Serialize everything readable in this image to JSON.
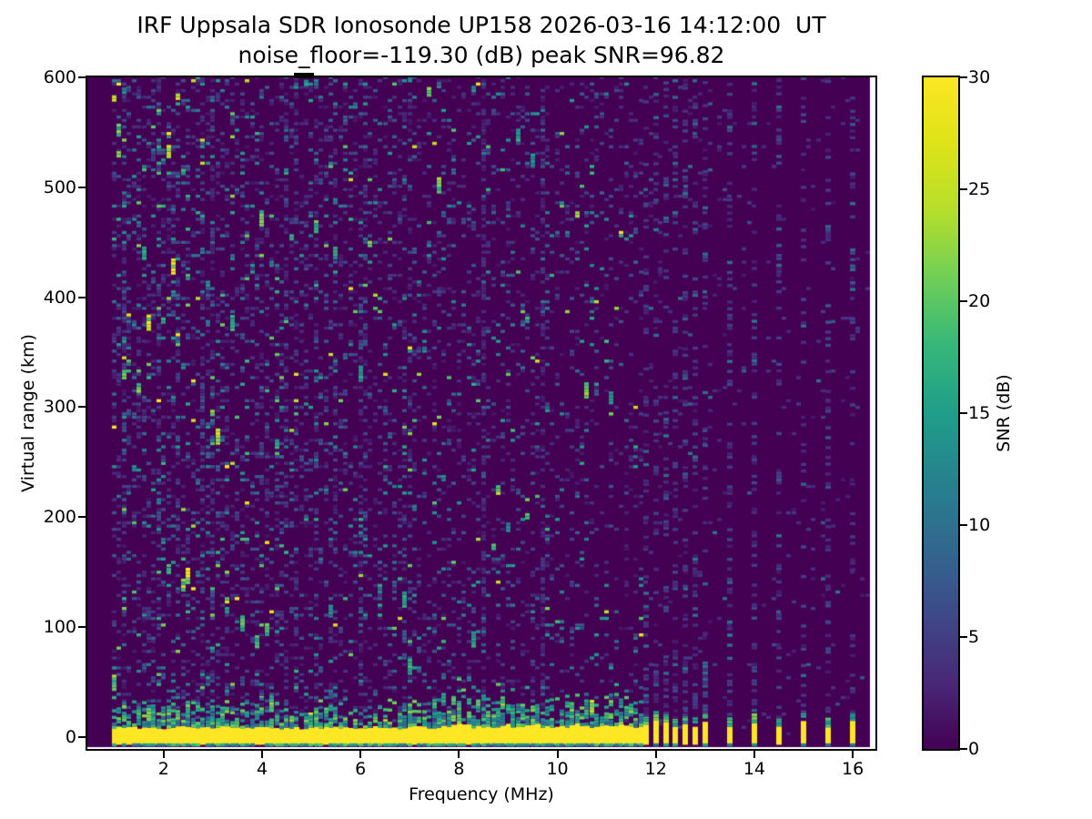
{
  "chart_data": {
    "type": "heatmap",
    "title": "IRF Uppsala SDR Ionosonde UP158 2026-03-16 14:12:00  UT",
    "subtitle": "noise_floor=-119.30 (dB) peak SNR=96.82",
    "xlabel": "Frequency (MHz)",
    "ylabel": "Virtual range (km)",
    "colorbar_label": "SNR (dB)",
    "x_ticks": [
      2,
      4,
      6,
      8,
      10,
      12,
      14,
      16
    ],
    "y_ticks": [
      0,
      100,
      200,
      300,
      400,
      500,
      600
    ],
    "colorbar_ticks": [
      0,
      5,
      10,
      15,
      20,
      25,
      30
    ],
    "x_range": [
      0.45,
      16.46
    ],
    "y_range": [
      -10.8,
      600
    ],
    "clim": [
      0,
      30
    ],
    "colormap": "viridis",
    "viridis_stops": [
      [
        0.0,
        "#440154"
      ],
      [
        0.1,
        "#482878"
      ],
      [
        0.2,
        "#3e4989"
      ],
      [
        0.3,
        "#31688e"
      ],
      [
        0.4,
        "#26828e"
      ],
      [
        0.5,
        "#1f9e89"
      ],
      [
        0.6,
        "#35b779"
      ],
      [
        0.7,
        "#6ece58"
      ],
      [
        0.8,
        "#b5de2b"
      ],
      [
        0.9,
        "#dde318"
      ],
      [
        1.0,
        "#fde725"
      ]
    ],
    "features": {
      "ground_echo_band": {
        "freq_start": 0.95,
        "freq_end": 11.65,
        "km_bottom": -7,
        "km_top": 8,
        "snr": 30
      },
      "bottom_scatter_row": {
        "km": -8.5,
        "snr": 15
      },
      "discrete_pulses": {
        "frequencies": [
          11.8,
          12.0,
          12.2,
          12.4,
          12.6,
          12.8,
          13.0,
          13.5,
          14.0,
          14.5,
          15.0,
          15.5,
          16.0
        ],
        "km_bottom": -7,
        "km_top_min": 8,
        "km_top_max": 15,
        "snr": 30
      },
      "interference_lines": [
        8.45,
        9.65
      ],
      "top_edge_marks": [
        {
          "freq": 4.85,
          "km": 592,
          "snr": 16
        },
        {
          "freq": 1.15,
          "km": 585,
          "snr": 14
        },
        {
          "freq": 7.55,
          "km": 590,
          "snr": 12
        }
      ],
      "top_spine_mark": {
        "freq_center": 4.85,
        "freq_width": 0.4
      },
      "no_data_above_freq": 16.35
    },
    "noise": {
      "seed": 123456,
      "cell_mhz": 0.1,
      "cell_km": 3,
      "density_low_freq": 0.31,
      "density_slope_per_mhz": 0.018,
      "density_min": 0.13,
      "interference_density": 0.5,
      "pulse_column_density_low": 0.45,
      "pulse_column_density_high": 0.24,
      "sparse_column_density": 0.05,
      "sparse_column_density_far": 0.03
    }
  }
}
